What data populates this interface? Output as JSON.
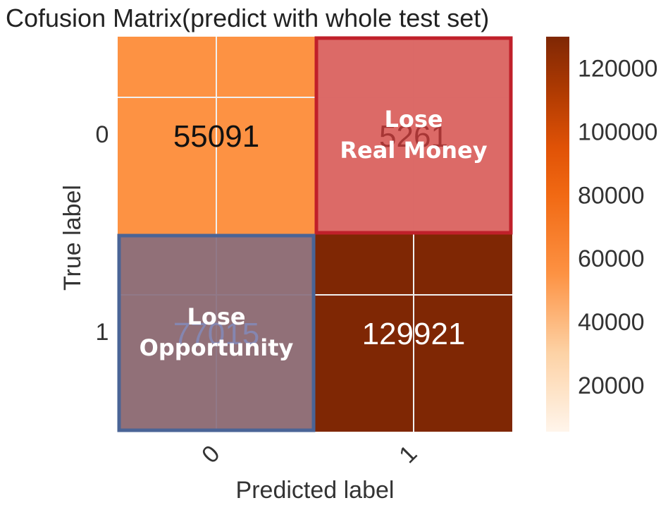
{
  "chart_data": {
    "type": "heatmap",
    "title": "Cofusion Matrix(predict with whole test set)",
    "xlabel": "Predicted label",
    "ylabel": "True label",
    "x_categories": [
      "0",
      "1"
    ],
    "y_categories": [
      "0",
      "1"
    ],
    "values": [
      [
        55091,
        5261
      ],
      [
        77015,
        129921
      ]
    ],
    "colorbar": {
      "ticks": [
        "20000",
        "40000",
        "60000",
        "80000",
        "100000",
        "120000"
      ],
      "range": [
        5261,
        129921
      ],
      "colormap": "Oranges"
    },
    "annotations": [
      {
        "cell": [
          0,
          1
        ],
        "lines": [
          "Lose",
          "Real  Money"
        ],
        "highlight_color": "#c0202a"
      },
      {
        "cell": [
          1,
          0
        ],
        "lines": [
          "Lose",
          "Opportunity"
        ],
        "highlight_color": "#4a6496"
      }
    ]
  },
  "colors": {
    "cell_0_0": "#fba35e",
    "cell_1_1": "#7f2704",
    "overlay_red_fill": "#d95f5d",
    "overlay_blue_fill": "#8a7080",
    "red_border": "#c0202a",
    "blue_border": "#4a6496"
  }
}
